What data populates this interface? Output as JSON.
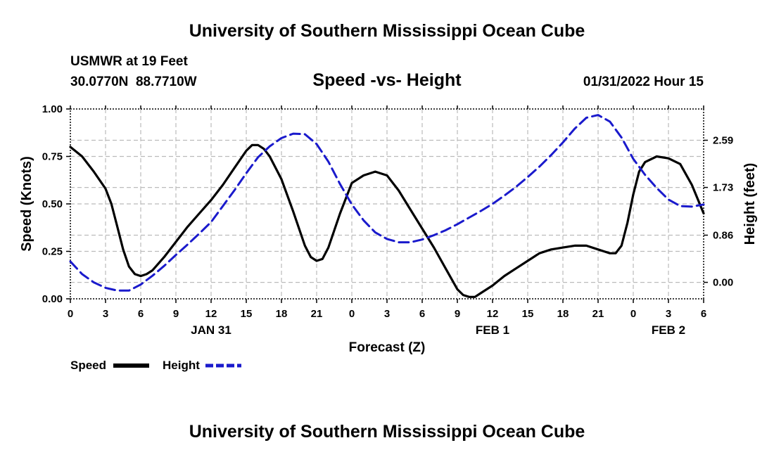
{
  "header": {
    "title": "University of Southern Mississippi Ocean Cube",
    "station": "USMWR at 19 Feet",
    "coords": "30.0770N  88.7710W",
    "subtitle": "Speed -vs- Height",
    "datetime": "01/31/2022 Hour 15"
  },
  "legend": {
    "speed_label": "Speed",
    "height_label": "Height"
  },
  "footer": {
    "title": "University of Southern Mississippi Ocean Cube"
  },
  "colors": {
    "speed": "#000000",
    "height": "#1a1acc",
    "grid": "#bbbbbb"
  },
  "chart_data": {
    "type": "line",
    "title": "Speed -vs- Height",
    "xlabel": "Forecast (Z)",
    "ylabel": "Speed (Knots)",
    "y2label": "Height (feet)",
    "xlim": [
      0,
      54
    ],
    "x_ticks": [
      0,
      3,
      6,
      9,
      12,
      15,
      18,
      21,
      24,
      27,
      30,
      33,
      36,
      39,
      42,
      45,
      48,
      51,
      54
    ],
    "x_tick_labels": [
      "0",
      "3",
      "6",
      "9",
      "12",
      "15",
      "18",
      "21",
      "0",
      "3",
      "6",
      "9",
      "12",
      "15",
      "18",
      "21",
      "0",
      "3",
      "6"
    ],
    "date_labels": [
      {
        "x": 12,
        "text": "JAN 31"
      },
      {
        "x": 36,
        "text": "FEB 1"
      },
      {
        "x": 51,
        "text": "FEB 2"
      }
    ],
    "ylim": [
      0,
      1
    ],
    "y_ticks": [
      0,
      0.25,
      0.5,
      0.75,
      1
    ],
    "y_tick_labels": [
      "0.00",
      "0.25",
      "0.50",
      "0.75",
      "1.00"
    ],
    "y2lim": [
      -0.3,
      3.16
    ],
    "y2_ticks": [
      0,
      0.86,
      1.73,
      2.59
    ],
    "y2_tick_labels": [
      "0.00",
      "0.86",
      "1.73",
      "2.59"
    ],
    "series": [
      {
        "name": "Speed",
        "axis": "left",
        "dash": "solid",
        "x": [
          0,
          1,
          2,
          3,
          3.5,
          4,
          4.5,
          5,
          5.5,
          6,
          6.5,
          7,
          8,
          9,
          10,
          11,
          12,
          13,
          14,
          15,
          15.5,
          16,
          16.5,
          17,
          18,
          19,
          20,
          20.5,
          21,
          21.5,
          22,
          23,
          24,
          25,
          26,
          27,
          28,
          29,
          30,
          31,
          32,
          33,
          33.5,
          34,
          34.5,
          35,
          36,
          37,
          38,
          39,
          40,
          41,
          42,
          43,
          44,
          45,
          45.5,
          46,
          46.5,
          47,
          47.5,
          48,
          48.5,
          49,
          50,
          51,
          52,
          53,
          54
        ],
        "values": [
          0.8,
          0.75,
          0.67,
          0.58,
          0.5,
          0.38,
          0.26,
          0.17,
          0.13,
          0.12,
          0.13,
          0.15,
          0.22,
          0.3,
          0.38,
          0.45,
          0.52,
          0.6,
          0.69,
          0.78,
          0.81,
          0.81,
          0.79,
          0.75,
          0.63,
          0.46,
          0.28,
          0.22,
          0.2,
          0.21,
          0.27,
          0.45,
          0.61,
          0.65,
          0.67,
          0.65,
          0.57,
          0.47,
          0.37,
          0.27,
          0.16,
          0.05,
          0.02,
          0.01,
          0.01,
          0.03,
          0.07,
          0.12,
          0.16,
          0.2,
          0.24,
          0.26,
          0.27,
          0.28,
          0.28,
          0.26,
          0.25,
          0.24,
          0.24,
          0.28,
          0.4,
          0.55,
          0.67,
          0.72,
          0.75,
          0.74,
          0.71,
          0.6,
          0.45
        ]
      },
      {
        "name": "Height",
        "axis": "right",
        "dash": "dashed",
        "x": [
          0,
          1,
          2,
          3,
          4,
          5,
          6,
          7,
          8,
          9,
          10,
          11,
          12,
          13,
          14,
          15,
          16,
          17,
          18,
          19,
          20,
          21,
          22,
          23,
          24,
          25,
          26,
          27,
          28,
          29,
          30,
          31,
          32,
          33,
          34,
          35,
          36,
          37,
          38,
          39,
          40,
          41,
          42,
          43,
          44,
          45,
          46,
          47,
          48,
          49,
          50,
          51,
          52,
          53,
          54
        ],
        "values": [
          0.38,
          0.15,
          0.0,
          -0.1,
          -0.15,
          -0.15,
          -0.04,
          0.12,
          0.3,
          0.5,
          0.69,
          0.89,
          1.1,
          1.39,
          1.68,
          1.99,
          2.28,
          2.48,
          2.63,
          2.71,
          2.7,
          2.52,
          2.2,
          1.79,
          1.42,
          1.13,
          0.91,
          0.79,
          0.73,
          0.73,
          0.78,
          0.86,
          0.95,
          1.06,
          1.18,
          1.3,
          1.43,
          1.58,
          1.74,
          1.92,
          2.11,
          2.32,
          2.55,
          2.8,
          3.0,
          3.05,
          2.93,
          2.64,
          2.25,
          1.96,
          1.72,
          1.51,
          1.39,
          1.38,
          1.42
        ]
      }
    ]
  }
}
